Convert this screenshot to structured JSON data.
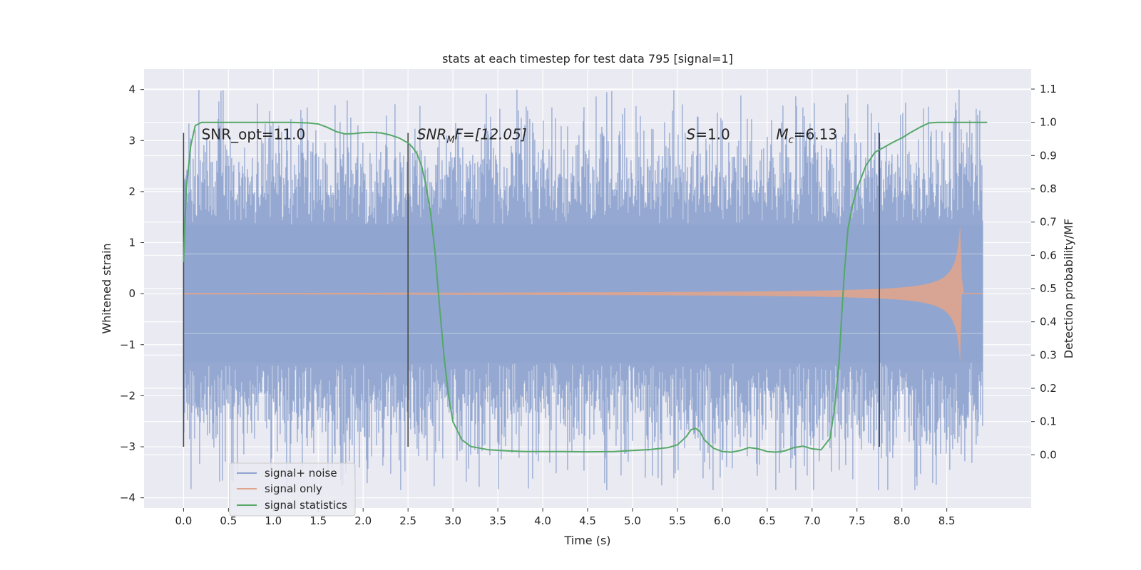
{
  "chart_data": {
    "type": "line",
    "title": "stats at each timestep for test data 795 [signal=1]",
    "xlabel": "Time (s)",
    "ylabel": "Whitened strain",
    "ylabel_right": "Detection probability/MF",
    "xlim": [
      -0.44,
      9.44
    ],
    "ylim": [
      -4.2,
      4.4
    ],
    "ylim_right": [
      -0.16,
      1.16
    ],
    "x_ticks": [
      0.0,
      0.5,
      1.0,
      1.5,
      2.0,
      2.5,
      3.0,
      3.5,
      4.0,
      4.5,
      5.0,
      5.5,
      6.0,
      6.5,
      7.0,
      7.5,
      8.0,
      8.5
    ],
    "x_tick_labels": [
      "0.0",
      "0.5",
      "1.0",
      "1.5",
      "2.0",
      "2.5",
      "3.0",
      "3.5",
      "4.0",
      "4.5",
      "5.0",
      "5.5",
      "6.0",
      "6.5",
      "7.0",
      "7.5",
      "8.0",
      "8.5"
    ],
    "y_ticks": [
      -4,
      -3,
      -2,
      -1,
      0,
      1,
      2,
      3,
      4
    ],
    "y_tick_labels": [
      "−4",
      "−3",
      "−2",
      "−1",
      "0",
      "1",
      "2",
      "3",
      "4"
    ],
    "y_right_ticks": [
      0.0,
      0.1,
      0.2,
      0.3,
      0.4,
      0.5,
      0.6,
      0.7,
      0.8,
      0.9,
      1.0,
      1.1
    ],
    "y_right_tick_labels": [
      "0.0",
      "0.1",
      "0.2",
      "0.3",
      "0.4",
      "0.5",
      "0.6",
      "0.7",
      "0.8",
      "0.9",
      "1.0",
      "1.1"
    ],
    "grid": true,
    "legend_position": "lower-left",
    "noise": {
      "name": "signal+ noise",
      "color": "#8fa4cf",
      "t_start": 0.0,
      "t_end": 8.9,
      "core_amplitude": 1.35,
      "typical_peak": 2.3,
      "max_value": 4.0,
      "min_value": -3.85
    },
    "signal": {
      "name": "signal only",
      "color": "#e0a58d",
      "t_start": 0.0,
      "t_merger": 8.67,
      "t_end": 8.9,
      "peak_amplitude": 1.45
    },
    "statistics": {
      "name": "signal statistics",
      "color": "#55a868",
      "axis": "right",
      "x": [
        0.0,
        0.03,
        0.08,
        0.13,
        0.2,
        0.3,
        0.5,
        0.8,
        1.0,
        1.2,
        1.4,
        1.5,
        1.6,
        1.7,
        1.8,
        1.9,
        2.0,
        2.1,
        2.2,
        2.3,
        2.4,
        2.5,
        2.55,
        2.6,
        2.65,
        2.7,
        2.75,
        2.8,
        2.85,
        2.9,
        2.95,
        3.0,
        3.1,
        3.2,
        3.4,
        3.6,
        3.8,
        4.0,
        4.2,
        4.5,
        4.8,
        5.0,
        5.2,
        5.4,
        5.5,
        5.6,
        5.65,
        5.7,
        5.75,
        5.8,
        5.9,
        6.0,
        6.1,
        6.2,
        6.3,
        6.4,
        6.5,
        6.6,
        6.7,
        6.8,
        6.9,
        7.0,
        7.1,
        7.2,
        7.25,
        7.3,
        7.33,
        7.36,
        7.4,
        7.45,
        7.5,
        7.6,
        7.7,
        7.8,
        7.9,
        8.0,
        8.1,
        8.2,
        8.3,
        8.4,
        8.5,
        8.6,
        8.8,
        8.95
      ],
      "y": [
        0.58,
        0.8,
        0.93,
        0.99,
        1.0,
        1.0,
        1.0,
        1.0,
        1.0,
        1.0,
        0.998,
        0.995,
        0.985,
        0.972,
        0.965,
        0.966,
        0.969,
        0.97,
        0.968,
        0.962,
        0.953,
        0.938,
        0.925,
        0.905,
        0.87,
        0.81,
        0.73,
        0.61,
        0.45,
        0.3,
        0.18,
        0.1,
        0.045,
        0.025,
        0.015,
        0.012,
        0.01,
        0.01,
        0.01,
        0.009,
        0.01,
        0.013,
        0.016,
        0.022,
        0.03,
        0.055,
        0.075,
        0.08,
        0.07,
        0.045,
        0.02,
        0.01,
        0.008,
        0.013,
        0.022,
        0.018,
        0.01,
        0.008,
        0.012,
        0.022,
        0.026,
        0.018,
        0.015,
        0.05,
        0.14,
        0.28,
        0.42,
        0.55,
        0.68,
        0.75,
        0.8,
        0.87,
        0.91,
        0.925,
        0.94,
        0.953,
        0.97,
        0.985,
        0.998,
        1.0,
        1.0,
        1.0,
        1.0,
        1.0
      ]
    },
    "vlines": [
      {
        "x": 0.0,
        "y_range": [
          -3.0,
          3.15
        ]
      },
      {
        "x": 2.5,
        "y_range": [
          -3.0,
          3.15
        ]
      },
      {
        "x": 7.75,
        "y_range": [
          -3.0,
          3.15
        ]
      }
    ],
    "annotations": [
      {
        "id": "snr-opt",
        "text": "SNR_opt=11.0",
        "x": 0.2,
        "y": 3.12
      },
      {
        "id": "snr-mf",
        "base": "SNR",
        "sub": "M",
        "rest": "F=[12.05]",
        "x": 2.6,
        "y": 3.12
      },
      {
        "id": "s",
        "base": "S",
        "rest": "=1.0",
        "x": 5.6,
        "y": 3.12
      },
      {
        "id": "mc",
        "base": "M",
        "sub": "c",
        "rest": "=6.13",
        "x": 6.6,
        "y": 3.12
      }
    ]
  }
}
